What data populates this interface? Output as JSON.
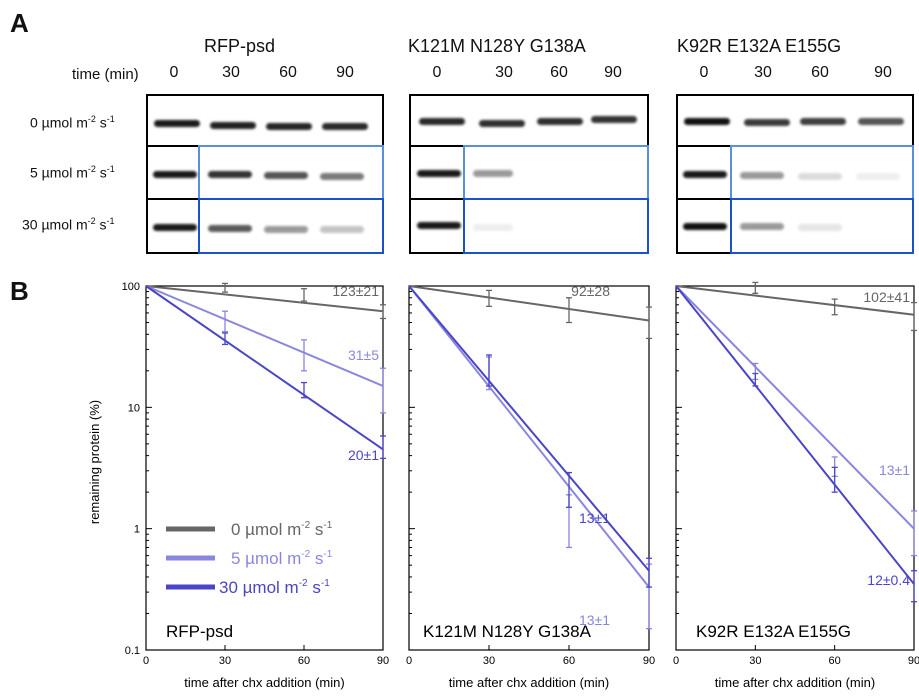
{
  "panel_a": {
    "letter": "A",
    "time_label": "time (min)",
    "timepoints": [
      "0",
      "30",
      "60",
      "90"
    ],
    "conditions": [
      "0 µmol m",
      "5 µmol m",
      "30 µmol m"
    ],
    "unit_tail": " s",
    "sup_minus2": "-2",
    "sup_minus1": "-1",
    "constructs": [
      {
        "title": "RFP-psd"
      },
      {
        "title": "K121M N128Y G138A"
      },
      {
        "title": "K92R E132A E155G"
      }
    ]
  },
  "panel_b": {
    "letter": "B",
    "ylabel": "remaining protein (%)",
    "xlabel": "time after chx addition (min)",
    "legend": {
      "items": [
        {
          "label": "0 µmol m",
          "color": "#666666"
        },
        {
          "label": "5 µmol m",
          "color": "#8a86e0"
        },
        {
          "label": "30 µmol m",
          "color": "#4a45c8"
        }
      ]
    }
  },
  "colors": {
    "dark": "#666666",
    "light": "#8a86e0",
    "blue": "#4a45c8",
    "box_light": "#5a8fe0",
    "box_dark": "#1a52c8"
  },
  "chart_data": [
    {
      "type": "line",
      "title": "RFP-psd",
      "x": [
        0,
        30,
        60,
        90
      ],
      "ylog": true,
      "ylim": [
        0.1,
        100
      ],
      "xlim": [
        0,
        90
      ],
      "xticks": [
        "0",
        "30",
        "60",
        "90"
      ],
      "yticks": [
        "0.1",
        "1",
        "10",
        "100"
      ],
      "series": [
        {
          "name": "0 µmol m-2 s-1",
          "values": [
            100,
            97,
            85,
            62
          ],
          "err": [
            0,
            8,
            10,
            8
          ],
          "fit": [
            100,
            62
          ],
          "label": "123±21"
        },
        {
          "name": "5 µmol m-2 s-1",
          "values": [
            100,
            52,
            28,
            15
          ],
          "err": [
            0,
            10,
            8,
            6
          ],
          "fit": [
            100,
            15
          ],
          "label": "31±5"
        },
        {
          "name": "30 µmol m-2 s-1",
          "values": [
            100,
            37,
            14,
            4.8
          ],
          "err": [
            0,
            4,
            2,
            1
          ],
          "fit": [
            100,
            4.5
          ],
          "label": "20±1"
        }
      ]
    },
    {
      "type": "line",
      "title": "K121M N128Y G138A",
      "x": [
        0,
        30,
        60,
        90
      ],
      "ylog": true,
      "ylim": [
        0.1,
        100
      ],
      "xlim": [
        0,
        90
      ],
      "xticks": [
        "0",
        "30",
        "60",
        "90"
      ],
      "yticks": [],
      "series": [
        {
          "name": "0 µmol m-2 s-1",
          "values": [
            100,
            80,
            65,
            52
          ],
          "err": [
            0,
            12,
            15,
            15
          ],
          "fit": [
            100,
            52
          ],
          "label": "92±28"
        },
        {
          "name": "5 µmol m-2 s-1",
          "values": [
            100,
            20,
            1.3,
            0.33
          ],
          "err": [
            0,
            6,
            0.6,
            0.18
          ],
          "fit": [
            100,
            0.33
          ],
          "label": "13±1"
        },
        {
          "name": "30 µmol m-2 s-1",
          "values": [
            100,
            21,
            2.2,
            0.45
          ],
          "err": [
            0,
            6,
            0.7,
            0.12
          ],
          "fit": [
            100,
            0.45
          ],
          "label": "13±1"
        }
      ]
    },
    {
      "type": "line",
      "title": "K92R E132A E155G",
      "x": [
        0,
        30,
        60,
        90
      ],
      "ylog": true,
      "ylim": [
        0.1,
        100
      ],
      "xlim": [
        0,
        90
      ],
      "xticks": [
        "0",
        "30",
        "60",
        "90"
      ],
      "yticks": [],
      "series": [
        {
          "name": "0 µmol m-2 s-1",
          "values": [
            100,
            97,
            68,
            58
          ],
          "err": [
            0,
            10,
            10,
            15
          ],
          "fit": [
            100,
            58
          ],
          "label": "102±41"
        },
        {
          "name": "5 µmol m-2 s-1",
          "values": [
            100,
            20,
            3.3,
            1.0
          ],
          "err": [
            0,
            3,
            0.6,
            0.4
          ],
          "fit": [
            100,
            1.0
          ],
          "label": "13±1"
        },
        {
          "name": "30 µmol m-2 s-1",
          "values": [
            100,
            17,
            2.6,
            0.35
          ],
          "err": [
            0,
            2,
            0.6,
            0.1
          ],
          "fit": [
            100,
            0.35
          ],
          "label": "12±0.4"
        }
      ]
    }
  ]
}
